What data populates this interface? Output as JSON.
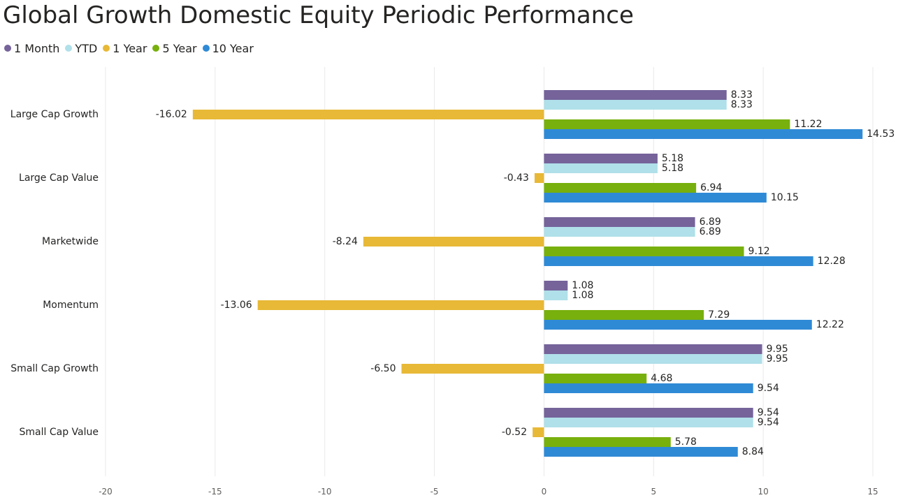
{
  "chart_data": {
    "type": "bar",
    "orientation": "horizontal",
    "title": "Global Growth Domestic Equity Periodic Performance",
    "categories": [
      "Large Cap Growth",
      "Large Cap Value",
      "Marketwide",
      "Momentum",
      "Small Cap Growth",
      "Small Cap Value"
    ],
    "series": [
      {
        "name": "1 Month",
        "color": "#75639a",
        "values": [
          8.33,
          5.18,
          6.89,
          1.08,
          9.95,
          9.54
        ],
        "labels": [
          "8.33",
          "5.18",
          "6.89",
          "1.08",
          "9.95",
          "9.54"
        ]
      },
      {
        "name": "YTD",
        "color": "#b0e0e9",
        "values": [
          8.33,
          5.18,
          6.89,
          1.08,
          9.95,
          9.54
        ],
        "labels": [
          "8.33",
          "5.18",
          "6.89",
          "1.08",
          "9.95",
          "9.54"
        ]
      },
      {
        "name": "1 Year",
        "color": "#e8b937",
        "values": [
          -16.02,
          -0.43,
          -8.24,
          -13.06,
          -6.5,
          -0.52
        ],
        "labels": [
          "-16.02",
          "-0.43",
          "-8.24",
          "-13.06",
          "-6.50",
          "-0.52"
        ]
      },
      {
        "name": "5 Year",
        "color": "#78b00e",
        "values": [
          11.22,
          6.94,
          9.12,
          7.29,
          4.68,
          5.78
        ],
        "labels": [
          "11.22",
          "6.94",
          "9.12",
          "7.29",
          "4.68",
          "5.78"
        ]
      },
      {
        "name": "10 Year",
        "color": "#2f8ad6",
        "values": [
          14.53,
          10.15,
          12.28,
          12.22,
          9.54,
          8.84
        ],
        "labels": [
          "14.53",
          "10.15",
          "12.28",
          "12.22",
          "9.54",
          "8.84"
        ]
      }
    ],
    "xlim": [
      -20,
      15
    ],
    "xticks": [
      -20,
      -15,
      -10,
      -5,
      0,
      5,
      10,
      15
    ],
    "xtick_labels": [
      "-20",
      "-15",
      "-10",
      "-5",
      "0",
      "5",
      "10",
      "15"
    ],
    "grid": true,
    "legend_position": "top-left",
    "xlabel": "",
    "ylabel": ""
  }
}
